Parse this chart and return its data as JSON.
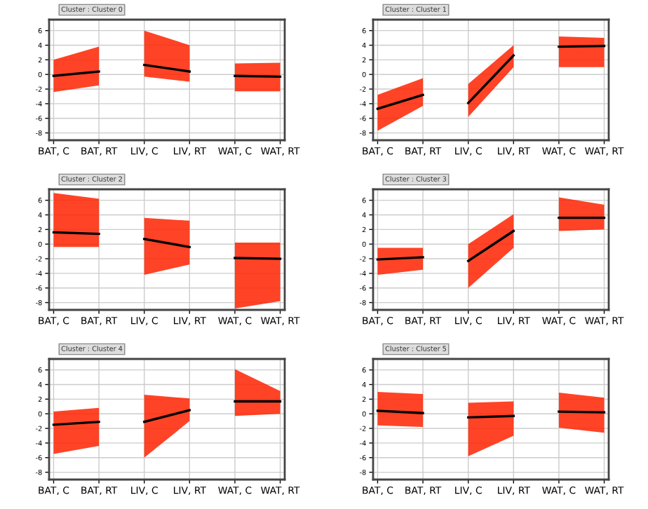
{
  "chart_data": [
    {
      "type": "line",
      "title": "Cluster : Cluster 0",
      "categories": [
        "BAT, C",
        "BAT, RT",
        "LIV, C",
        "LIV, RT",
        "WAT, C",
        "WAT, RT"
      ],
      "ylim": [
        -9,
        7.5
      ],
      "yticks": [
        -8,
        -6,
        -4,
        -2,
        0,
        2,
        4,
        6
      ],
      "grid": true,
      "series": [
        {
          "color": "#000000",
          "values": [
            -0.2,
            0.4,
            null,
            null,
            null,
            null
          ],
          "lower": [
            -2.4,
            -1.5,
            null,
            null,
            null,
            null
          ],
          "upper": [
            2.0,
            3.8,
            null,
            null,
            null,
            null
          ]
        },
        {
          "color": "#000000",
          "values": [
            null,
            null,
            1.3,
            0.4,
            null,
            null
          ],
          "lower": [
            null,
            null,
            -0.3,
            -1.0,
            null,
            null
          ],
          "upper": [
            null,
            null,
            6.0,
            4.0,
            null,
            null
          ]
        },
        {
          "color": "#000000",
          "values": [
            null,
            null,
            null,
            null,
            -0.2,
            -0.3
          ],
          "lower": [
            null,
            null,
            null,
            null,
            -2.3,
            -2.3
          ],
          "upper": [
            null,
            null,
            null,
            null,
            1.5,
            1.6
          ]
        }
      ]
    },
    {
      "type": "line",
      "title": "Cluster : Cluster 1",
      "categories": [
        "BAT, C",
        "BAT, RT",
        "LIV, C",
        "LIV, RT",
        "WAT, C",
        "WAT, RT"
      ],
      "ylim": [
        -9,
        7.5
      ],
      "yticks": [
        -8,
        -6,
        -4,
        -2,
        0,
        2,
        4,
        6
      ],
      "grid": true,
      "series": [
        {
          "color": "#000000",
          "values": [
            -4.7,
            -2.8,
            null,
            null,
            null,
            null
          ],
          "lower": [
            -7.7,
            -4.3,
            null,
            null,
            null,
            null
          ],
          "upper": [
            -2.8,
            -0.5,
            null,
            null,
            null,
            null
          ]
        },
        {
          "color": "#000000",
          "values": [
            null,
            null,
            -3.9,
            2.6,
            null,
            null
          ],
          "lower": [
            null,
            null,
            -5.8,
            1.0,
            null,
            null
          ],
          "upper": [
            null,
            null,
            -1.3,
            4.0,
            null,
            null
          ]
        },
        {
          "color": "#000000",
          "values": [
            null,
            null,
            null,
            null,
            3.8,
            3.9
          ],
          "lower": [
            null,
            null,
            null,
            null,
            1.0,
            1.0
          ],
          "upper": [
            null,
            null,
            null,
            null,
            5.2,
            5.0
          ]
        }
      ]
    },
    {
      "type": "line",
      "title": "Cluster : Cluster 2",
      "categories": [
        "BAT, C",
        "BAT, RT",
        "LIV, C",
        "LIV, RT",
        "WAT, C",
        "WAT, RT"
      ],
      "ylim": [
        -9,
        7.5
      ],
      "yticks": [
        -8,
        -6,
        -4,
        -2,
        0,
        2,
        4,
        6
      ],
      "grid": true,
      "series": [
        {
          "color": "#000000",
          "values": [
            1.6,
            1.4,
            null,
            null,
            null,
            null
          ],
          "lower": [
            -0.4,
            -0.4,
            null,
            null,
            null,
            null
          ],
          "upper": [
            7.0,
            6.2,
            null,
            null,
            null,
            null
          ]
        },
        {
          "color": "#000000",
          "values": [
            null,
            null,
            0.7,
            -0.4,
            null,
            null
          ],
          "lower": [
            null,
            null,
            -4.2,
            -2.8,
            null,
            null
          ],
          "upper": [
            null,
            null,
            3.6,
            3.2,
            null,
            null
          ]
        },
        {
          "color": "#000000",
          "values": [
            null,
            null,
            null,
            null,
            -1.9,
            -2.0
          ],
          "lower": [
            null,
            null,
            null,
            null,
            -8.8,
            -7.8
          ],
          "upper": [
            null,
            null,
            null,
            null,
            0.2,
            0.2
          ]
        }
      ]
    },
    {
      "type": "line",
      "title": "Cluster : Cluster 3",
      "categories": [
        "BAT, C",
        "BAT, RT",
        "LIV, C",
        "LIV, RT",
        "WAT, C",
        "WAT, RT"
      ],
      "ylim": [
        -9,
        7.5
      ],
      "yticks": [
        -8,
        -6,
        -4,
        -2,
        0,
        2,
        4,
        6
      ],
      "grid": true,
      "series": [
        {
          "color": "#000000",
          "values": [
            -2.1,
            -1.8,
            null,
            null,
            null,
            null
          ],
          "lower": [
            -4.2,
            -3.5,
            null,
            null,
            null,
            null
          ],
          "upper": [
            -0.5,
            -0.5,
            null,
            null,
            null,
            null
          ]
        },
        {
          "color": "#000000",
          "values": [
            null,
            null,
            -2.3,
            1.8,
            null,
            null
          ],
          "lower": [
            null,
            null,
            -6.0,
            -0.5,
            null,
            null
          ],
          "upper": [
            null,
            null,
            0.0,
            4.1,
            null,
            null
          ]
        },
        {
          "color": "#000000",
          "values": [
            null,
            null,
            null,
            null,
            3.6,
            3.6
          ],
          "lower": [
            null,
            null,
            null,
            null,
            1.8,
            2.0
          ],
          "upper": [
            null,
            null,
            null,
            null,
            6.4,
            5.4
          ]
        }
      ]
    },
    {
      "type": "line",
      "title": "Cluster : Cluster 4",
      "categories": [
        "BAT, C",
        "BAT, RT",
        "LIV, C",
        "LIV, RT",
        "WAT, C",
        "WAT, RT"
      ],
      "ylim": [
        -9,
        7.5
      ],
      "yticks": [
        -8,
        -6,
        -4,
        -2,
        0,
        2,
        4,
        6
      ],
      "grid": true,
      "series": [
        {
          "color": "#000000",
          "values": [
            -1.5,
            -1.1,
            null,
            null,
            null,
            null
          ],
          "lower": [
            -5.5,
            -4.4,
            null,
            null,
            null,
            null
          ],
          "upper": [
            0.3,
            0.8,
            null,
            null,
            null,
            null
          ]
        },
        {
          "color": "#000000",
          "values": [
            null,
            null,
            -1.1,
            0.5,
            null,
            null
          ],
          "lower": [
            null,
            null,
            -6.0,
            -1.0,
            null,
            null
          ],
          "upper": [
            null,
            null,
            2.6,
            2.1,
            null,
            null
          ]
        },
        {
          "color": "#000000",
          "values": [
            null,
            null,
            null,
            null,
            1.7,
            1.7
          ],
          "lower": [
            null,
            null,
            null,
            null,
            -0.3,
            0.0
          ],
          "upper": [
            null,
            null,
            null,
            null,
            6.1,
            3.1
          ]
        }
      ]
    },
    {
      "type": "line",
      "title": "Cluster : Cluster 5",
      "categories": [
        "BAT, C",
        "BAT, RT",
        "LIV, C",
        "LIV, RT",
        "WAT, C",
        "WAT, RT"
      ],
      "ylim": [
        -9,
        7.5
      ],
      "yticks": [
        -8,
        -6,
        -4,
        -2,
        0,
        2,
        4,
        6
      ],
      "grid": true,
      "series": [
        {
          "color": "#000000",
          "values": [
            0.4,
            0.1,
            null,
            null,
            null,
            null
          ],
          "lower": [
            -1.6,
            -1.8,
            null,
            null,
            null,
            null
          ],
          "upper": [
            3.0,
            2.7,
            null,
            null,
            null,
            null
          ]
        },
        {
          "color": "#000000",
          "values": [
            null,
            null,
            -0.5,
            -0.3,
            null,
            null
          ],
          "lower": [
            null,
            null,
            -5.8,
            -3.0,
            null,
            null
          ],
          "upper": [
            null,
            null,
            1.5,
            1.7,
            null,
            null
          ]
        },
        {
          "color": "#000000",
          "values": [
            null,
            null,
            null,
            null,
            0.3,
            0.2
          ],
          "lower": [
            null,
            null,
            null,
            null,
            -1.9,
            -2.6
          ],
          "upper": [
            null,
            null,
            null,
            null,
            2.9,
            2.2
          ]
        }
      ]
    }
  ]
}
